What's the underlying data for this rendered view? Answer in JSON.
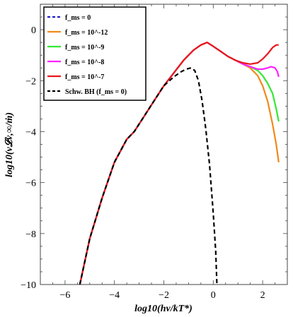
{
  "chart_data": {
    "type": "line",
    "title": "",
    "xlabel": "log10(hν/kT*)",
    "ylabel": "log10(ν𝓛ν,∞/ṁ)",
    "xlim": [
      -7,
      3
    ],
    "ylim": [
      -10,
      1
    ],
    "xticks": [
      -6,
      -4,
      -2,
      0,
      2
    ],
    "yticks": [
      -10,
      -8,
      -6,
      -4,
      -2,
      0
    ],
    "xtick_labels": [
      "−6",
      "−4",
      "−2",
      "0",
      "2"
    ],
    "ytick_labels": [
      "−10",
      "−8",
      "−6",
      "−4",
      "−2",
      "0"
    ],
    "legend_position": "top-left",
    "legend": [
      {
        "label": "f_ms = 0",
        "color": "#2020c8",
        "dash": true
      },
      {
        "label": "f_ms = 10^-12",
        "color": "#f08a1a",
        "dash": false
      },
      {
        "label": "f_ms = 10^-9",
        "color": "#33e833",
        "dash": false
      },
      {
        "label": "f_ms = 10^-8",
        "color": "#ff22ff",
        "dash": false
      },
      {
        "label": "f_ms = 10^-7",
        "color": "#e8181c",
        "dash": false
      },
      {
        "label": "Schw. BH (f_ms = 0)",
        "color": "#000000",
        "dash": true
      }
    ],
    "series": [
      {
        "name": "f_ms = 0",
        "color": "#2020c8",
        "dash": "6,4",
        "x": [
          -5.4,
          -5.0,
          -4.5,
          -4.0,
          -3.5,
          -3.2,
          -2.8,
          -2.4,
          -2.0,
          -1.6,
          -1.2,
          -0.8,
          -0.5,
          -0.25,
          0.0,
          0.3,
          0.6,
          0.9,
          1.2,
          1.5
        ],
        "y": [
          -10.0,
          -8.2,
          -6.6,
          -5.2,
          -4.3,
          -4.0,
          -3.4,
          -2.8,
          -2.2,
          -1.7,
          -1.2,
          -0.8,
          -0.6,
          -0.5,
          -0.65,
          -0.85,
          -1.05,
          -1.2,
          -1.35,
          -1.45
        ]
      },
      {
        "name": "f_ms = 10^-12",
        "color": "#f08a1a",
        "dash": "",
        "x": [
          -5.4,
          -5.0,
          -4.5,
          -4.0,
          -3.5,
          -3.2,
          -2.8,
          -2.4,
          -2.0,
          -1.6,
          -1.2,
          -0.8,
          -0.5,
          -0.25,
          0.0,
          0.3,
          0.6,
          0.9,
          1.2,
          1.5,
          1.8,
          2.0,
          2.2,
          2.4,
          2.55,
          2.65
        ],
        "y": [
          -10.0,
          -8.2,
          -6.6,
          -5.2,
          -4.3,
          -4.0,
          -3.4,
          -2.8,
          -2.2,
          -1.7,
          -1.2,
          -0.8,
          -0.6,
          -0.5,
          -0.65,
          -0.85,
          -1.05,
          -1.2,
          -1.35,
          -1.5,
          -1.8,
          -2.2,
          -2.8,
          -3.7,
          -4.5,
          -5.2
        ]
      },
      {
        "name": "f_ms = 10^-9",
        "color": "#33e833",
        "dash": "",
        "x": [
          -5.4,
          -5.0,
          -4.5,
          -4.0,
          -3.5,
          -3.2,
          -2.8,
          -2.4,
          -2.0,
          -1.6,
          -1.2,
          -0.8,
          -0.5,
          -0.25,
          0.0,
          0.3,
          0.6,
          0.9,
          1.2,
          1.5,
          1.8,
          2.0,
          2.2,
          2.4,
          2.55,
          2.65
        ],
        "y": [
          -10.0,
          -8.2,
          -6.6,
          -5.2,
          -4.3,
          -4.0,
          -3.4,
          -2.8,
          -2.2,
          -1.7,
          -1.2,
          -0.8,
          -0.6,
          -0.5,
          -0.65,
          -0.85,
          -1.05,
          -1.2,
          -1.35,
          -1.45,
          -1.6,
          -1.8,
          -2.1,
          -2.5,
          -3.1,
          -3.6
        ]
      },
      {
        "name": "f_ms = 10^-8",
        "color": "#ff22ff",
        "dash": "",
        "x": [
          -5.4,
          -5.0,
          -4.5,
          -4.0,
          -3.5,
          -3.2,
          -2.8,
          -2.4,
          -2.0,
          -1.6,
          -1.2,
          -0.8,
          -0.5,
          -0.25,
          0.0,
          0.3,
          0.6,
          0.9,
          1.2,
          1.5,
          1.8,
          2.0,
          2.2,
          2.35,
          2.5,
          2.6,
          2.65
        ],
        "y": [
          -10.0,
          -8.2,
          -6.6,
          -5.2,
          -4.3,
          -4.0,
          -3.4,
          -2.8,
          -2.2,
          -1.7,
          -1.2,
          -0.8,
          -0.6,
          -0.5,
          -0.65,
          -0.85,
          -1.05,
          -1.2,
          -1.35,
          -1.45,
          -1.55,
          -1.55,
          -1.5,
          -1.45,
          -1.5,
          -1.65,
          -1.85
        ]
      },
      {
        "name": "f_ms = 10^-7",
        "color": "#e8181c",
        "dash": "",
        "x": [
          -5.4,
          -5.0,
          -4.5,
          -4.0,
          -3.5,
          -3.2,
          -2.8,
          -2.4,
          -2.0,
          -1.6,
          -1.2,
          -0.8,
          -0.5,
          -0.25,
          0.0,
          0.3,
          0.6,
          0.9,
          1.2,
          1.5,
          1.8,
          2.0,
          2.2,
          2.4,
          2.55,
          2.65
        ],
        "y": [
          -10.0,
          -8.2,
          -6.6,
          -5.2,
          -4.3,
          -4.0,
          -3.4,
          -2.8,
          -2.2,
          -1.7,
          -1.2,
          -0.8,
          -0.6,
          -0.5,
          -0.65,
          -0.85,
          -1.05,
          -1.2,
          -1.3,
          -1.35,
          -1.3,
          -1.15,
          -0.95,
          -0.7,
          -0.6,
          -0.6
        ]
      },
      {
        "name": "Schw. BH (f_ms = 0)",
        "color": "#000000",
        "dash": "6,4",
        "x": [
          -5.4,
          -5.0,
          -4.5,
          -4.0,
          -3.5,
          -3.2,
          -2.8,
          -2.4,
          -2.0,
          -1.6,
          -1.3,
          -1.1,
          -0.9,
          -0.75,
          -0.6,
          -0.45,
          -0.3,
          -0.15,
          0.0,
          0.1,
          0.15
        ],
        "y": [
          -10.0,
          -8.2,
          -6.6,
          -5.2,
          -4.3,
          -4.0,
          -3.4,
          -2.8,
          -2.2,
          -1.85,
          -1.65,
          -1.55,
          -1.5,
          -1.6,
          -2.0,
          -2.8,
          -3.9,
          -5.3,
          -7.2,
          -8.7,
          -10.0
        ]
      }
    ]
  }
}
